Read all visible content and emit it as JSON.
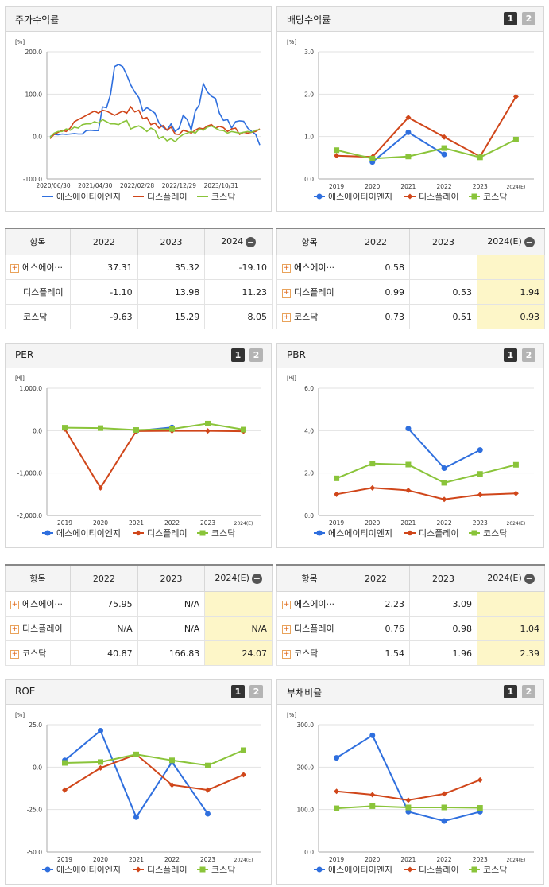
{
  "colors": {
    "s1": "#2f6fde",
    "s2": "#d0461a",
    "s3": "#8ac43a",
    "grid": "#e2e2e2",
    "axis": "#555"
  },
  "legend": [
    "에스에이티이엔지",
    "디스플레이",
    "코스닥"
  ],
  "pager": [
    "1",
    "2"
  ],
  "charts": [
    {
      "id": "price",
      "title": "주가수익률",
      "unit": "[%]",
      "type": "line",
      "y_ticks": [
        "200.0",
        "100.0",
        "0.0",
        "-100.0"
      ],
      "ylim": [
        -100,
        200
      ],
      "x_ticks": [
        "2020/06/30",
        "2021/04/30",
        "2022/02/28",
        "2022/12/29",
        "2023/10/31"
      ],
      "series": [
        {
          "name": "에스에이티이엔지",
          "values": [
            0,
            5,
            4,
            6,
            5,
            6,
            7,
            6,
            6,
            14,
            15,
            14,
            14,
            70,
            68,
            100,
            165,
            170,
            165,
            145,
            122,
            105,
            92,
            60,
            68,
            62,
            55,
            32,
            22,
            15,
            30,
            12,
            20,
            50,
            40,
            15,
            60,
            75,
            125,
            105,
            95,
            90,
            55,
            38,
            40,
            20,
            35,
            37,
            36,
            20,
            12,
            5,
            -20
          ]
        },
        {
          "name": "디스플레이",
          "values": [
            -5,
            5,
            10,
            15,
            12,
            20,
            35,
            40,
            45,
            50,
            55,
            60,
            55,
            62,
            60,
            55,
            50,
            55,
            60,
            55,
            70,
            58,
            62,
            42,
            45,
            28,
            32,
            20,
            26,
            15,
            22,
            6,
            5,
            15,
            12,
            8,
            15,
            20,
            18,
            25,
            28,
            20,
            24,
            21,
            12,
            18,
            20,
            5,
            10,
            8,
            10,
            12,
            18
          ]
        },
        {
          "name": "코스닥",
          "values": [
            -2,
            8,
            12,
            12,
            18,
            15,
            22,
            20,
            28,
            30,
            30,
            35,
            32,
            40,
            35,
            30,
            30,
            28,
            34,
            38,
            18,
            22,
            25,
            20,
            12,
            20,
            15,
            -5,
            0,
            -10,
            -5,
            -12,
            -2,
            5,
            8,
            12,
            8,
            18,
            15,
            22,
            25,
            20,
            15,
            14,
            8,
            12,
            10,
            8,
            10,
            12,
            10,
            15,
            16
          ]
        }
      ]
    },
    {
      "id": "dividend",
      "title": "배당수익률",
      "unit": "[%]",
      "type": "line",
      "y_ticks": [
        "3.0",
        "2.0",
        "1.0",
        "0.0"
      ],
      "ylim": [
        0,
        3
      ],
      "x_ticks": [
        "2019",
        "2020",
        "2021",
        "2022",
        "2023",
        "2024(E)"
      ],
      "series": [
        {
          "name": "에스에이티이엔지",
          "values": [
            null,
            0.4,
            1.1,
            0.58,
            null,
            null
          ]
        },
        {
          "name": "디스플레이",
          "values": [
            0.55,
            0.52,
            1.45,
            0.99,
            0.53,
            1.94
          ]
        },
        {
          "name": "코스닥",
          "values": [
            0.68,
            0.48,
            0.53,
            0.73,
            0.51,
            0.93
          ]
        }
      ]
    },
    {
      "id": "per",
      "title": "PER",
      "unit": "[배]",
      "type": "line",
      "y_ticks": [
        "1,000.0",
        "0.0",
        "-1,000.0",
        "-2,000.0"
      ],
      "ylim": [
        -2000,
        1000
      ],
      "x_ticks": [
        "2019",
        "2020",
        "2021",
        "2022",
        "2023",
        "2024(E)"
      ],
      "series": [
        {
          "name": "에스에이티이엔지",
          "values": [
            null,
            null,
            -5,
            75.95,
            null,
            null
          ]
        },
        {
          "name": "디스플레이",
          "values": [
            40,
            -1350,
            -10,
            -5,
            -5,
            -15
          ]
        },
        {
          "name": "코스닥",
          "values": [
            70,
            60,
            15,
            40.87,
            166.83,
            24.07
          ]
        }
      ]
    },
    {
      "id": "pbr",
      "title": "PBR",
      "unit": "[배]",
      "type": "line",
      "y_ticks": [
        "6.0",
        "4.0",
        "2.0",
        "0.0"
      ],
      "ylim": [
        0,
        6
      ],
      "x_ticks": [
        "2019",
        "2020",
        "2021",
        "2022",
        "2023",
        "2024(E)"
      ],
      "series": [
        {
          "name": "에스에이티이엔지",
          "values": [
            null,
            null,
            4.1,
            2.23,
            3.09,
            null
          ]
        },
        {
          "name": "디스플레이",
          "values": [
            1.0,
            1.3,
            1.18,
            0.76,
            0.98,
            1.04
          ]
        },
        {
          "name": "코스닥",
          "values": [
            1.75,
            2.45,
            2.4,
            1.54,
            1.96,
            2.39
          ]
        }
      ]
    },
    {
      "id": "roe",
      "title": "ROE",
      "unit": "[%]",
      "type": "line",
      "y_ticks": [
        "25.0",
        "0.0",
        "-25.0",
        "-50.0"
      ],
      "ylim": [
        -50,
        25
      ],
      "x_ticks": [
        "2019",
        "2020",
        "2021",
        "2022",
        "2023",
        "2024(E)"
      ],
      "series": [
        {
          "name": "에스에이티이엔지",
          "values": [
            4,
            21.5,
            -29.5,
            3,
            -27.5,
            null
          ]
        },
        {
          "name": "디스플레이",
          "values": [
            -13.5,
            -0.5,
            7.5,
            -10.5,
            -13.5,
            -4.5
          ]
        },
        {
          "name": "코스닥",
          "values": [
            2.5,
            3,
            7.5,
            4,
            1,
            10
          ]
        }
      ]
    },
    {
      "id": "debt",
      "title": "부채비율",
      "unit": "[%]",
      "type": "line",
      "y_ticks": [
        "300.0",
        "200.0",
        "100.0",
        "0.0"
      ],
      "ylim": [
        0,
        300
      ],
      "x_ticks": [
        "2019",
        "2020",
        "2021",
        "2022",
        "2023",
        "2024(E)"
      ],
      "series": [
        {
          "name": "에스에이티이엔지",
          "values": [
            222,
            275,
            95,
            73,
            95,
            null
          ]
        },
        {
          "name": "디스플레이",
          "values": [
            143,
            135,
            122,
            137,
            170,
            null
          ]
        },
        {
          "name": "코스닥",
          "values": [
            103,
            108,
            105,
            105,
            104,
            null
          ]
        }
      ]
    }
  ],
  "tables": [
    {
      "id": "t1",
      "headers": [
        "항목",
        "2022",
        "2023",
        "2024"
      ],
      "header_icon": "minus-icon",
      "has_estimate": false,
      "rows": [
        {
          "name": "에스에이···",
          "plus": true,
          "values": [
            "37.31",
            "35.32",
            "-19.10"
          ]
        },
        {
          "name": "디스플레이",
          "plus": false,
          "values": [
            "-1.10",
            "13.98",
            "11.23"
          ]
        },
        {
          "name": "코스닥",
          "plus": false,
          "values": [
            "-9.63",
            "15.29",
            "8.05"
          ]
        }
      ]
    },
    {
      "id": "t2",
      "headers": [
        "항목",
        "2022",
        "2023",
        "2024(E)"
      ],
      "header_icon": "minus-icon",
      "has_estimate": true,
      "rows": [
        {
          "name": "에스에이···",
          "plus": true,
          "values": [
            "0.58",
            "",
            ""
          ]
        },
        {
          "name": "디스플레이",
          "plus": true,
          "values": [
            "0.99",
            "0.53",
            "1.94"
          ]
        },
        {
          "name": "코스닥",
          "plus": true,
          "values": [
            "0.73",
            "0.51",
            "0.93"
          ]
        }
      ]
    },
    {
      "id": "t3",
      "headers": [
        "항목",
        "2022",
        "2023",
        "2024(E)"
      ],
      "header_icon": "minus-icon",
      "has_estimate": true,
      "rows": [
        {
          "name": "에스에이···",
          "plus": true,
          "values": [
            "75.95",
            "N/A",
            ""
          ]
        },
        {
          "name": "디스플레이",
          "plus": true,
          "values": [
            "N/A",
            "N/A",
            "N/A"
          ]
        },
        {
          "name": "코스닥",
          "plus": true,
          "values": [
            "40.87",
            "166.83",
            "24.07"
          ]
        }
      ]
    },
    {
      "id": "t4",
      "headers": [
        "항목",
        "2022",
        "2023",
        "2024(E)"
      ],
      "header_icon": "minus-icon",
      "has_estimate": true,
      "rows": [
        {
          "name": "에스에이···",
          "plus": true,
          "values": [
            "2.23",
            "3.09",
            ""
          ]
        },
        {
          "name": "디스플레이",
          "plus": true,
          "values": [
            "0.76",
            "0.98",
            "1.04"
          ]
        },
        {
          "name": "코스닥",
          "plus": true,
          "values": [
            "1.54",
            "1.96",
            "2.39"
          ]
        }
      ]
    }
  ]
}
